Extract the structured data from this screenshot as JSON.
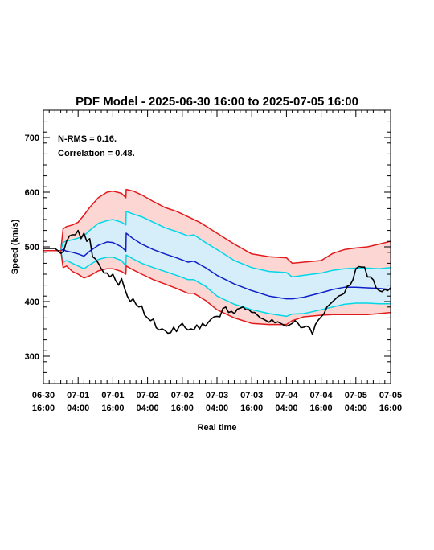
{
  "chart_data": {
    "type": "line",
    "title": "PDF Model - 2025-06-30 16:00 to 2025-07-05 16:00",
    "xlabel": "Real time",
    "ylabel": "Speed (km/s)",
    "xlim": [
      0,
      120
    ],
    "ylim": [
      250,
      750
    ],
    "y_ticks": [
      300,
      400,
      500,
      600,
      700
    ],
    "x_ticks": [
      {
        "x": 0,
        "line1": "06-30",
        "line2": "16:00"
      },
      {
        "x": 12,
        "line1": "07-01",
        "line2": "04:00"
      },
      {
        "x": 24,
        "line1": "07-01",
        "line2": "16:00"
      },
      {
        "x": 36,
        "line1": "07-02",
        "line2": "04:00"
      },
      {
        "x": 48,
        "line1": "07-02",
        "line2": "16:00"
      },
      {
        "x": 60,
        "line1": "07-03",
        "line2": "04:00"
      },
      {
        "x": 72,
        "line1": "07-03",
        "line2": "16:00"
      },
      {
        "x": 84,
        "line1": "07-04",
        "line2": "04:00"
      },
      {
        "x": 96,
        "line1": "07-04",
        "line2": "16:00"
      },
      {
        "x": 108,
        "line1": "07-05",
        "line2": "04:00"
      },
      {
        "x": 120,
        "line1": "07-05",
        "line2": "16:00"
      }
    ],
    "annotations": [
      "N-RMS = 0.16.",
      "Correlation = 0.48."
    ],
    "grid": false,
    "outer_band": {
      "fill": "#fcd6d2"
    },
    "inner_band": {
      "fill": "#d6eefa"
    },
    "series": [
      {
        "color": "#e31a1c",
        "x": [
          0,
          4,
          6,
          6.8,
          8,
          10,
          12,
          14,
          16,
          19,
          22,
          24,
          27,
          28.5,
          28.6,
          31,
          34,
          38,
          42,
          46,
          50,
          54,
          60,
          66,
          72,
          78,
          84,
          86,
          90,
          96,
          100,
          104,
          108,
          112,
          116,
          120
        ],
        "values": [
          493,
          493,
          493,
          533,
          537,
          540,
          545,
          558,
          572,
          590,
          600,
          602,
          598,
          590,
          605,
          602,
          595,
          583,
          572,
          565,
          555,
          545,
          525,
          505,
          487,
          482,
          480,
          470,
          472,
          475,
          488,
          495,
          498,
          500,
          505,
          510
        ]
      },
      {
        "color": "#00d7e8",
        "x": [
          0,
          4,
          6,
          6.8,
          8,
          10,
          12,
          14,
          16,
          19,
          22,
          24,
          27,
          28.5,
          28.6,
          31,
          34,
          38,
          42,
          46,
          50,
          52,
          56,
          60,
          66,
          72,
          78,
          84,
          86,
          90,
          96,
          100,
          104,
          108,
          112,
          116,
          120
        ],
        "values": [
          493,
          493,
          493,
          508,
          511,
          513,
          516,
          520,
          530,
          543,
          548,
          550,
          545,
          540,
          565,
          560,
          555,
          545,
          535,
          528,
          520,
          522,
          508,
          495,
          475,
          462,
          455,
          453,
          445,
          448,
          452,
          457,
          460,
          461,
          461,
          460,
          462
        ]
      },
      {
        "color": "#1020c8",
        "x": [
          0,
          4,
          6,
          6.8,
          8,
          10,
          12,
          14,
          16,
          19,
          22,
          24,
          27,
          28.5,
          28.6,
          31,
          34,
          38,
          42,
          46,
          50,
          52,
          56,
          60,
          66,
          72,
          78,
          84,
          86,
          90,
          96,
          100,
          104,
          108,
          112,
          116,
          120
        ],
        "values": [
          493,
          493,
          493,
          495,
          492,
          490,
          487,
          483,
          492,
          503,
          509,
          508,
          500,
          492,
          525,
          515,
          505,
          495,
          487,
          480,
          472,
          474,
          462,
          448,
          432,
          420,
          410,
          405,
          405,
          408,
          416,
          422,
          426,
          426,
          425,
          424,
          422
        ]
      },
      {
        "color": "#00d7e8",
        "x": [
          0,
          4,
          6,
          6.8,
          8,
          10,
          12,
          14,
          16,
          19,
          22,
          24,
          27,
          28.5,
          28.6,
          31,
          34,
          38,
          42,
          46,
          50,
          52,
          56,
          60,
          66,
          72,
          78,
          84,
          86,
          90,
          96,
          100,
          104,
          108,
          112,
          116,
          120
        ],
        "values": [
          493,
          493,
          493,
          472,
          475,
          470,
          465,
          460,
          467,
          477,
          481,
          481,
          475,
          465,
          485,
          478,
          470,
          462,
          455,
          448,
          440,
          440,
          428,
          410,
          395,
          385,
          378,
          373,
          377,
          378,
          385,
          390,
          395,
          397,
          397,
          396,
          396
        ]
      },
      {
        "color": "#e31a1c",
        "x": [
          0,
          4,
          6,
          6.8,
          8,
          10,
          12,
          14,
          16,
          19,
          22,
          24,
          27,
          28.5,
          28.6,
          31,
          34,
          38,
          42,
          46,
          50,
          52,
          56,
          60,
          66,
          72,
          78,
          84,
          86,
          90,
          96,
          100,
          104,
          108,
          112,
          116,
          120
        ],
        "values": [
          493,
          493,
          493,
          462,
          465,
          455,
          450,
          443,
          447,
          456,
          460,
          460,
          455,
          450,
          465,
          458,
          450,
          440,
          432,
          424,
          415,
          415,
          402,
          385,
          370,
          360,
          358,
          358,
          365,
          372,
          375,
          376,
          376,
          376,
          376,
          378,
          380
        ]
      },
      {
        "color": "#000000",
        "x": [
          0,
          2,
          4,
          5,
          6,
          7,
          8,
          9,
          10,
          11,
          12,
          13,
          14,
          15,
          16,
          17,
          18,
          19,
          20,
          21,
          22,
          23,
          24,
          25,
          26,
          27,
          28,
          29,
          30,
          31,
          32,
          33,
          34,
          35,
          36,
          37,
          38,
          39,
          40,
          41,
          42,
          43,
          44,
          45,
          46,
          47,
          48,
          49,
          50,
          51,
          52,
          53,
          54,
          55,
          56,
          57,
          58,
          59,
          60,
          61,
          62,
          63,
          64,
          65,
          66,
          67,
          68,
          69,
          70,
          71,
          72,
          73,
          74,
          75,
          76,
          77,
          78,
          79,
          80,
          81,
          82,
          83,
          84,
          85,
          86,
          87,
          88,
          89,
          90,
          91,
          92,
          93,
          94,
          95,
          96,
          97,
          98,
          99,
          100,
          101,
          102,
          103,
          104,
          105,
          106,
          107,
          108,
          109,
          110,
          111,
          112,
          113,
          114,
          115,
          116,
          117,
          118,
          119,
          120
        ],
        "values": [
          497,
          497,
          497,
          493,
          488,
          492,
          510,
          520,
          522,
          522,
          530,
          515,
          525,
          510,
          515,
          482,
          478,
          470,
          460,
          452,
          452,
          445,
          450,
          438,
          430,
          442,
          425,
          410,
          400,
          405,
          395,
          390,
          392,
          375,
          370,
          365,
          368,
          352,
          348,
          350,
          347,
          342,
          343,
          353,
          345,
          355,
          360,
          352,
          348,
          350,
          348,
          357,
          350,
          360,
          355,
          362,
          368,
          372,
          373,
          372,
          387,
          390,
          380,
          382,
          378,
          386,
          388,
          390,
          385,
          385,
          380,
          380,
          375,
          370,
          368,
          365,
          362,
          367,
          361,
          363,
          360,
          357,
          355,
          357,
          360,
          365,
          360,
          352,
          353,
          355,
          352,
          340,
          358,
          366,
          372,
          378,
          390,
          395,
          400,
          405,
          410,
          412,
          415,
          428,
          430,
          440,
          460,
          464,
          463,
          463,
          445,
          445,
          440,
          425,
          420,
          418,
          422,
          420,
          425
        ]
      }
    ]
  }
}
